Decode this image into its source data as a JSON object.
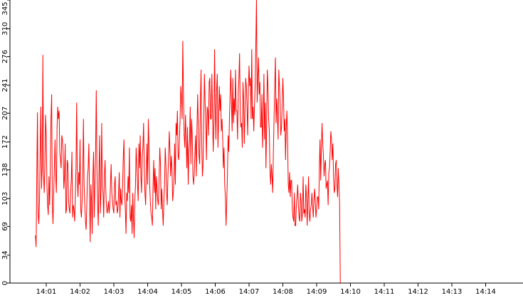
{
  "chart_data": {
    "type": "line",
    "title": "",
    "xlabel": "",
    "ylabel": "",
    "ylim": [
      0,
      345
    ],
    "y_ticks": [
      0,
      34,
      69,
      103,
      138,
      172,
      207,
      241,
      276,
      310,
      345
    ],
    "x_ticks": [
      "14:01",
      "14:02",
      "14:03",
      "14:04",
      "14:05",
      "14:06",
      "14:07",
      "14:08",
      "14:09",
      "14:10",
      "14:11",
      "14:12",
      "14:13",
      "14:14"
    ],
    "grid": false,
    "series": [
      {
        "color": "#ff0000",
        "x_minutes_from_1400": [
          0.68,
          0.7,
          0.72,
          0.74,
          0.76,
          0.78,
          0.8,
          0.82,
          0.84,
          0.86,
          0.88,
          0.9,
          0.92,
          0.94,
          0.96,
          0.98,
          1.0,
          1.02,
          1.04,
          1.06,
          1.08,
          1.1,
          1.12,
          1.14,
          1.16,
          1.18,
          1.2,
          1.22,
          1.24,
          1.26,
          1.28,
          1.3,
          1.32,
          1.34,
          1.36,
          1.38,
          1.4,
          1.42,
          1.44,
          1.46,
          1.48,
          1.5,
          1.52,
          1.54,
          1.56,
          1.58,
          1.6,
          1.62,
          1.64,
          1.66,
          1.68,
          1.7,
          1.72,
          1.74,
          1.76,
          1.78,
          1.8,
          1.82,
          1.84,
          1.86,
          1.88,
          1.9,
          1.92,
          1.94,
          1.96,
          1.98,
          2.0,
          2.02,
          2.04,
          2.06,
          2.08,
          2.1,
          2.12,
          2.14,
          2.16,
          2.18,
          2.2,
          2.22,
          2.24,
          2.26,
          2.28,
          2.3,
          2.32,
          2.34,
          2.36,
          2.38,
          2.4,
          2.42,
          2.44,
          2.46,
          2.48,
          2.5,
          2.52,
          2.54,
          2.56,
          2.58,
          2.6,
          2.62,
          2.64,
          2.66,
          2.68,
          2.7,
          2.72,
          2.74,
          2.76,
          2.78,
          2.8,
          2.82,
          2.84,
          2.86,
          2.88,
          2.9,
          2.92,
          2.94,
          2.96,
          2.98,
          3.0,
          3.02,
          3.04,
          3.06,
          3.08,
          3.1,
          3.12,
          3.14,
          3.16,
          3.18,
          3.2,
          3.22,
          3.24,
          3.26,
          3.28,
          3.3,
          3.32,
          3.34,
          3.36,
          3.38,
          3.4,
          3.42,
          3.44,
          3.46,
          3.48,
          3.5,
          3.52,
          3.54,
          3.56,
          3.58,
          3.6,
          3.62,
          3.64,
          3.66,
          3.68,
          3.7,
          3.72,
          3.74,
          3.76,
          3.78,
          3.8,
          3.82,
          3.84,
          3.86,
          3.88,
          3.9,
          3.92,
          3.94,
          3.96,
          3.98,
          4.0,
          4.02,
          4.04,
          4.06,
          4.08,
          4.1,
          4.12,
          4.14,
          4.16,
          4.18,
          4.2,
          4.22,
          4.24,
          4.26,
          4.28,
          4.3,
          4.32,
          4.34,
          4.36,
          4.38,
          4.4,
          4.42,
          4.44,
          4.46,
          4.48,
          4.5,
          4.52,
          4.54,
          4.56,
          4.58,
          4.6,
          4.62,
          4.64,
          4.66,
          4.68,
          4.7,
          4.72,
          4.74,
          4.76,
          4.78,
          4.8,
          4.82,
          4.84,
          4.86,
          4.88,
          4.9,
          4.92,
          4.94,
          4.96,
          4.98,
          5.0,
          5.02,
          5.04,
          5.06,
          5.08,
          5.1,
          5.12,
          5.14,
          5.16,
          5.18,
          5.2,
          5.22,
          5.24,
          5.26,
          5.28,
          5.3,
          5.32,
          5.34,
          5.36,
          5.38,
          5.4,
          5.42,
          5.44,
          5.46,
          5.48,
          5.5,
          5.52,
          5.54,
          5.56,
          5.58,
          5.6,
          5.62,
          5.64,
          5.66,
          5.68,
          5.7,
          5.72,
          5.74,
          5.76,
          5.78,
          5.8,
          5.82,
          5.84,
          5.86,
          5.88,
          5.9,
          5.92,
          5.94,
          5.96,
          5.98,
          6.0,
          6.02,
          6.04,
          6.06,
          6.08,
          6.1,
          6.12,
          6.14,
          6.16,
          6.18,
          6.2,
          6.22,
          6.24,
          6.26,
          6.28,
          6.3,
          6.32,
          6.34,
          6.36,
          6.38,
          6.4,
          6.42,
          6.44,
          6.46,
          6.48,
          6.5,
          6.52,
          6.54,
          6.56,
          6.58,
          6.6,
          6.62,
          6.64,
          6.66,
          6.68,
          6.7,
          6.72,
          6.74,
          6.76,
          6.78,
          6.8,
          6.82,
          6.84,
          6.86,
          6.88,
          6.9,
          6.92,
          6.94,
          6.96,
          6.98,
          7.0,
          7.02,
          7.04,
          7.06,
          7.08,
          7.1,
          7.12,
          7.14,
          7.16,
          7.18,
          7.2,
          7.22,
          7.24,
          7.26,
          7.28,
          7.3,
          7.32,
          7.34,
          7.36,
          7.38,
          7.4,
          7.42,
          7.44,
          7.46,
          7.48,
          7.5,
          7.52,
          7.54,
          7.56,
          7.58,
          7.6,
          7.62,
          7.64,
          7.66,
          7.68,
          7.7,
          7.72,
          7.74,
          7.76,
          7.78,
          7.8,
          7.82,
          7.84,
          7.86,
          7.88,
          7.9,
          7.92,
          7.94,
          7.96,
          7.98,
          8.0,
          8.02,
          8.04,
          8.06,
          8.08,
          8.1,
          8.12,
          8.14,
          8.16,
          8.18,
          8.2,
          8.22,
          8.24,
          8.26,
          8.28,
          8.3,
          8.32,
          8.34,
          8.36,
          8.38,
          8.4,
          8.42,
          8.44,
          8.46,
          8.48,
          8.5,
          8.52,
          8.54,
          8.56,
          8.58,
          8.6,
          8.62,
          8.64,
          8.66,
          8.68,
          8.7,
          8.72,
          8.74,
          8.76,
          8.78,
          8.8,
          8.82,
          8.84,
          8.86,
          8.88,
          8.9,
          8.92,
          8.94,
          8.96,
          8.98,
          9.0,
          9.02,
          9.04,
          9.06,
          9.08,
          9.1,
          9.12,
          9.14,
          9.16,
          9.18,
          9.2,
          9.22,
          9.24,
          9.26,
          9.28,
          9.3,
          9.32,
          9.34,
          9.36,
          9.38,
          9.4,
          9.42,
          9.44,
          9.46,
          9.48,
          9.5,
          9.52,
          9.54,
          9.56,
          9.58,
          9.6,
          9.62,
          9.64,
          9.66,
          9.68,
          9.7,
          9.72,
          9.74,
          9.76,
          9.78,
          9.8,
          9.82,
          9.84,
          9.86,
          9.88,
          9.9,
          9.92,
          9.94,
          9.96,
          9.98,
          10.0,
          10.02,
          10.04,
          10.06,
          10.08,
          10.1,
          10.12,
          10.14,
          10.16,
          10.18,
          10.2,
          10.22,
          10.24,
          10.26,
          10.28,
          10.3,
          10.32,
          10.34,
          10.36,
          10.38,
          10.4,
          10.42,
          10.44,
          10.46,
          10.48,
          10.5,
          10.52,
          10.54,
          10.56,
          10.58,
          10.6,
          10.62,
          10.64
        ],
        "values": [
          58,
          44,
          130,
          208,
          85,
          72,
          100,
          160,
          215,
          115,
          140,
          278,
          134,
          110,
          140,
          205,
          180,
          120,
          95,
          83,
          130,
          95,
          139,
          200,
          230,
          95,
          72,
          110,
          140,
          175,
          130,
          110,
          190,
          215,
          200,
          210,
          160,
          150,
          140,
          180,
          175,
          160,
          115,
          130,
          170,
          85,
          90,
          150,
          145,
          100,
          90,
          85,
          110,
          125,
          160,
          80,
          95,
          90,
          75,
          105,
          140,
          220,
          125,
          105,
          135,
          120,
          175,
          90,
          80,
          100,
          130,
          200,
          120,
          95,
          75,
          65,
          95,
          130,
          140,
          170,
          110,
          50,
          120,
          100,
          60,
          130,
          160,
          80,
          120,
          160,
          235,
          140,
          95,
          70,
          135,
          180,
          85,
          110,
          195,
          120,
          110,
          80,
          130,
          150,
          115,
          95,
          85,
          90,
          100,
          85,
          95,
          120,
          145,
          110,
          100,
          90,
          85,
          120,
          130,
          95,
          100,
          85,
          90,
          110,
          135,
          80,
          115,
          100,
          95,
          120,
          155,
          175,
          110,
          90,
          60,
          110,
          100,
          130,
          110,
          165,
          80,
          75,
          95,
          60,
          110,
          80,
          55,
          100,
          120,
          165,
          145,
          120,
          100,
          170,
          140,
          180,
          130,
          110,
          155,
          165,
          195,
          140,
          110,
          95,
          135,
          170,
          120,
          200,
          165,
          120,
          100,
          85,
          80,
          70,
          120,
          150,
          110,
          140,
          90,
          130,
          115,
          100,
          95,
          130,
          165,
          145,
          90,
          115,
          90,
          70,
          100,
          120,
          165,
          145,
          110,
          95,
          130,
          155,
          185,
          160,
          130,
          155,
          140,
          100,
          110,
          130,
          170,
          120,
          195,
          180,
          210,
          155,
          150,
          175,
          200,
          240,
          225,
          200,
          295,
          230,
          180,
          165,
          205,
          175,
          140,
          190,
          120,
          160,
          175,
          215,
          145,
          200,
          180,
          130,
          120,
          135,
          160,
          180,
          130,
          190,
          230,
          190,
          155,
          145,
          220,
          260,
          170,
          130,
          145,
          200,
          255,
          220,
          195,
          150,
          215,
          210,
          180,
          245,
          250,
          200,
          200,
          255,
          205,
          160,
          195,
          285,
          210,
          175,
          235,
          255,
          165,
          200,
          240,
          210,
          230,
          185,
          200,
          175,
          140,
          165,
          120,
          105,
          70,
          100,
          130,
          180,
          160,
          200,
          230,
          260,
          220,
          185,
          250,
          195,
          225,
          205,
          260,
          210,
          210,
          175,
          230,
          250,
          280,
          205,
          190,
          195,
          165,
          245,
          225,
          170,
          210,
          250,
          240,
          215,
          180,
          235,
          265,
          240,
          250,
          200,
          285,
          200,
          215,
          185,
          215,
          240,
          290,
          345,
          220,
          250,
          275,
          230,
          245,
          190,
          190,
          230,
          165,
          200,
          255,
          175,
          220,
          140,
          190,
          260,
          240,
          200,
          185,
          135,
          120,
          145,
          130,
          110,
          160,
          200,
          240,
          275,
          195,
          225,
          205,
          175,
          260,
          240,
          220,
          180,
          190,
          215,
          250,
          225,
          185,
          200,
          150,
          190,
          210,
          175,
          120,
          110,
          135,
          105,
          125,
          125,
          90,
          80,
          75,
          110,
          70,
          70,
          95,
          105,
          120,
          95,
          80,
          75,
          110,
          100,
          75,
          85,
          130,
          85,
          90,
          80,
          120,
          105,
          70,
          100,
          130,
          85,
          75,
          90,
          95,
          110,
          95,
          80,
          100,
          115,
          100,
          80,
          90,
          105,
          105,
          90,
          140,
          175,
          125,
          165,
          195,
          170,
          155,
          130,
          145,
          150,
          115,
          120,
          125,
          95,
          135,
          140,
          160,
          185,
          175,
          150,
          170,
          130,
          110,
          115,
          145,
          150,
          120,
          105,
          140,
          120,
          95,
          0
        ]
      }
    ]
  }
}
